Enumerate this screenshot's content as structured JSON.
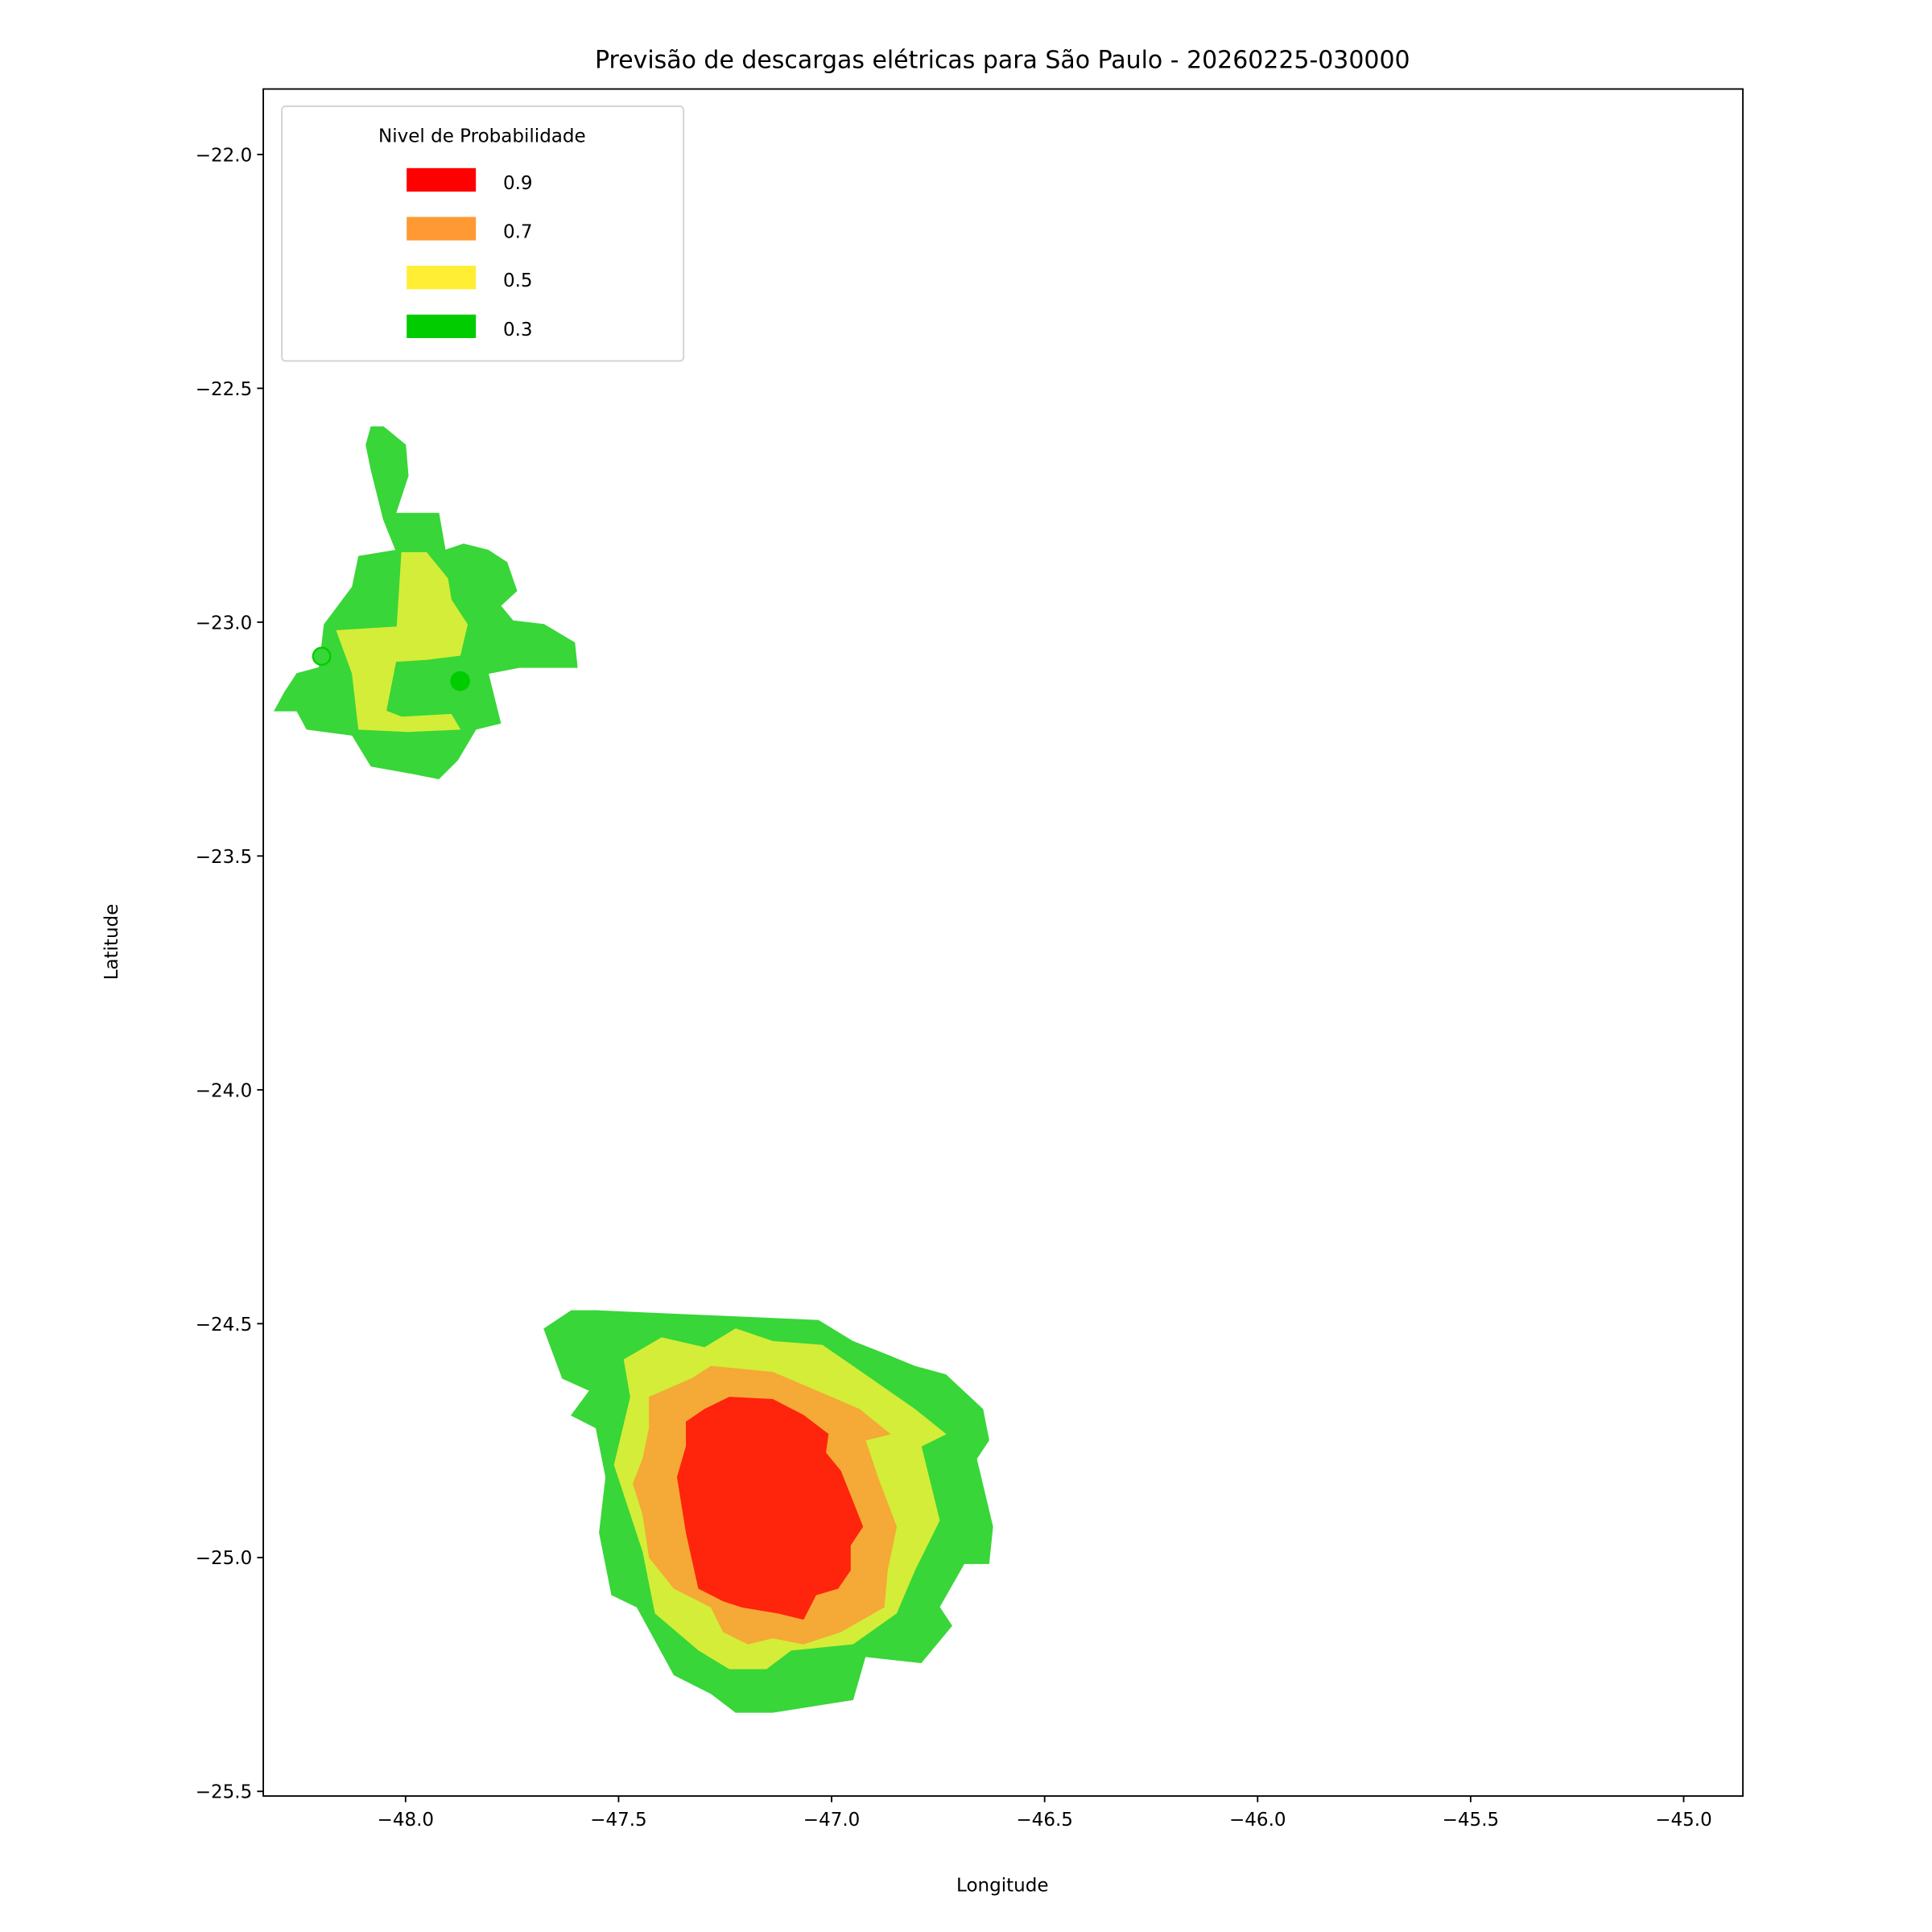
{
  "chart_data": {
    "type": "contourf",
    "title": "Previsão de descargas elétricas para São Paulo - 20260225-030000",
    "xlabel": "Longitude",
    "ylabel": "Latitude",
    "xlim": [
      -48.334,
      -44.861
    ],
    "ylim": [
      -25.51,
      -21.86
    ],
    "x_ticks": [
      -48.0,
      -47.5,
      -47.0,
      -46.5,
      -46.0,
      -45.5,
      -45.0
    ],
    "x_tick_labels": [
      "−48.0",
      "−47.5",
      "−47.0",
      "−46.5",
      "−46.0",
      "−45.5",
      "−45.0"
    ],
    "y_ticks": [
      -22.0,
      -22.5,
      -23.0,
      -23.5,
      -24.0,
      -24.5,
      -25.0,
      -25.5
    ],
    "y_tick_labels": [
      "−22.0",
      "−22.5",
      "−23.0",
      "−23.5",
      "−24.0",
      "−24.5",
      "−25.0",
      "−25.5"
    ],
    "grid": false,
    "legend": {
      "title": "Nivel de Probabilidade",
      "placement": "top-left",
      "entries": [
        {
          "label": "0.9",
          "color": "#ff0000"
        },
        {
          "label": "0.7",
          "color": "#ff9933"
        },
        {
          "label": "0.5",
          "color": "#ffee33"
        },
        {
          "label": "0.3",
          "color": "#00cc00"
        }
      ]
    },
    "levels": [
      {
        "level": 0.3,
        "color": "#38d638",
        "polygons": [
          [
            [
              -48.081,
              -22.582
            ],
            [
              -48.052,
              -22.582
            ],
            [
              -48.0,
              -22.621
            ],
            [
              -47.994,
              -22.687
            ],
            [
              -48.023,
              -22.767
            ],
            [
              -47.922,
              -22.767
            ],
            [
              -47.907,
              -22.846
            ],
            [
              -47.864,
              -22.833
            ],
            [
              -47.806,
              -22.846
            ],
            [
              -47.762,
              -22.872
            ],
            [
              -47.739,
              -22.933
            ],
            [
              -47.777,
              -22.965
            ],
            [
              -47.748,
              -22.997
            ],
            [
              -47.675,
              -23.005
            ],
            [
              -47.603,
              -23.044
            ],
            [
              -47.597,
              -23.097
            ],
            [
              -47.733,
              -23.097
            ],
            [
              -47.806,
              -23.11
            ],
            [
              -47.777,
              -23.216
            ],
            [
              -47.835,
              -23.229
            ],
            [
              -47.878,
              -23.295
            ],
            [
              -47.922,
              -23.335
            ],
            [
              -47.994,
              -23.322
            ],
            [
              -48.081,
              -23.308
            ],
            [
              -48.125,
              -23.242
            ],
            [
              -48.232,
              -23.229
            ],
            [
              -48.255,
              -23.19
            ],
            [
              -48.308,
              -23.19
            ],
            [
              -48.284,
              -23.15
            ],
            [
              -48.255,
              -23.11
            ],
            [
              -48.203,
              -23.097
            ],
            [
              -48.191,
              -23.005
            ],
            [
              -48.125,
              -22.925
            ],
            [
              -48.11,
              -22.859
            ],
            [
              -48.023,
              -22.846
            ],
            [
              -48.052,
              -22.78
            ],
            [
              -48.081,
              -22.674
            ],
            [
              -48.093,
              -22.621
            ]
          ],
          [
            [
              -47.553,
              -24.472
            ],
            [
              -47.031,
              -24.493
            ],
            [
              -46.95,
              -24.538
            ],
            [
              -46.877,
              -24.564
            ],
            [
              -46.805,
              -24.591
            ],
            [
              -46.732,
              -24.609
            ],
            [
              -46.645,
              -24.683
            ],
            [
              -46.631,
              -24.749
            ],
            [
              -46.66,
              -24.789
            ],
            [
              -46.622,
              -24.934
            ],
            [
              -46.631,
              -25.013
            ],
            [
              -46.689,
              -25.013
            ],
            [
              -46.747,
              -25.106
            ],
            [
              -46.718,
              -25.146
            ],
            [
              -46.79,
              -25.225
            ],
            [
              -46.921,
              -25.212
            ],
            [
              -46.95,
              -25.304
            ],
            [
              -47.138,
              -25.331
            ],
            [
              -47.225,
              -25.331
            ],
            [
              -47.283,
              -25.291
            ],
            [
              -47.37,
              -25.251
            ],
            [
              -47.457,
              -25.106
            ],
            [
              -47.516,
              -25.08
            ],
            [
              -47.545,
              -24.947
            ],
            [
              -47.53,
              -24.828
            ],
            [
              -47.553,
              -24.723
            ],
            [
              -47.611,
              -24.696
            ],
            [
              -47.568,
              -24.643
            ],
            [
              -47.632,
              -24.617
            ],
            [
              -47.675,
              -24.511
            ],
            [
              -47.611,
              -24.472
            ]
          ]
        ]
      },
      {
        "level": 0.5,
        "color": "#d4ed38",
        "polygons": [
          [
            [
              -48.009,
              -22.851
            ],
            [
              -47.951,
              -22.851
            ],
            [
              -47.901,
              -22.907
            ],
            [
              -47.893,
              -22.952
            ],
            [
              -47.855,
              -23.005
            ],
            [
              -47.872,
              -23.071
            ],
            [
              -47.951,
              -23.08
            ],
            [
              -48.023,
              -23.084
            ],
            [
              -48.046,
              -23.19
            ],
            [
              -48.009,
              -23.203
            ],
            [
              -47.893,
              -23.197
            ],
            [
              -47.872,
              -23.229
            ],
            [
              -47.994,
              -23.234
            ],
            [
              -48.11,
              -23.229
            ],
            [
              -48.125,
              -23.11
            ],
            [
              -48.162,
              -23.018
            ],
            [
              -48.02,
              -23.01
            ]
          ],
          [
            [
              -47.487,
              -24.577
            ],
            [
              -47.399,
              -24.53
            ],
            [
              -47.298,
              -24.551
            ],
            [
              -47.225,
              -24.511
            ],
            [
              -47.138,
              -24.538
            ],
            [
              -47.022,
              -24.546
            ],
            [
              -46.95,
              -24.591
            ],
            [
              -46.805,
              -24.683
            ],
            [
              -46.732,
              -24.736
            ],
            [
              -46.79,
              -24.762
            ],
            [
              -46.747,
              -24.921
            ],
            [
              -46.805,
              -25.027
            ],
            [
              -46.848,
              -25.119
            ],
            [
              -46.95,
              -25.185
            ],
            [
              -47.095,
              -25.198
            ],
            [
              -47.153,
              -25.238
            ],
            [
              -47.24,
              -25.238
            ],
            [
              -47.312,
              -25.198
            ],
            [
              -47.414,
              -25.119
            ],
            [
              -47.443,
              -24.987
            ],
            [
              -47.51,
              -24.802
            ],
            [
              -47.472,
              -24.657
            ]
          ]
        ]
      },
      {
        "level": 0.7,
        "color": "#f5a936",
        "polygons": [
          [
            [
              -47.428,
              -24.657
            ],
            [
              -47.327,
              -24.617
            ],
            [
              -47.283,
              -24.591
            ],
            [
              -47.138,
              -24.604
            ],
            [
              -47.037,
              -24.643
            ],
            [
              -46.935,
              -24.683
            ],
            [
              -46.863,
              -24.736
            ],
            [
              -46.921,
              -24.749
            ],
            [
              -46.892,
              -24.828
            ],
            [
              -46.848,
              -24.934
            ],
            [
              -46.869,
              -25.027
            ],
            [
              -46.877,
              -25.106
            ],
            [
              -46.979,
              -25.159
            ],
            [
              -47.066,
              -25.185
            ],
            [
              -47.138,
              -25.172
            ],
            [
              -47.196,
              -25.185
            ],
            [
              -47.254,
              -25.159
            ],
            [
              -47.283,
              -25.106
            ],
            [
              -47.37,
              -25.066
            ],
            [
              -47.428,
              -25.0
            ],
            [
              -47.443,
              -24.908
            ],
            [
              -47.466,
              -24.842
            ],
            [
              -47.443,
              -24.789
            ],
            [
              -47.428,
              -24.723
            ]
          ]
        ]
      },
      {
        "level": 0.9,
        "color": "#ff240c",
        "polygons": [
          [
            [
              -47.341,
              -24.71
            ],
            [
              -47.298,
              -24.683
            ],
            [
              -47.24,
              -24.657
            ],
            [
              -47.138,
              -24.662
            ],
            [
              -47.066,
              -24.696
            ],
            [
              -47.008,
              -24.736
            ],
            [
              -47.014,
              -24.776
            ],
            [
              -46.979,
              -24.815
            ],
            [
              -46.95,
              -24.881
            ],
            [
              -46.927,
              -24.934
            ],
            [
              -46.956,
              -24.974
            ],
            [
              -46.956,
              -25.027
            ],
            [
              -46.985,
              -25.066
            ],
            [
              -47.037,
              -25.08
            ],
            [
              -47.066,
              -25.132
            ],
            [
              -47.124,
              -25.119
            ],
            [
              -47.211,
              -25.106
            ],
            [
              -47.254,
              -25.093
            ],
            [
              -47.312,
              -25.066
            ],
            [
              -47.341,
              -24.947
            ],
            [
              -47.362,
              -24.828
            ],
            [
              -47.341,
              -24.762
            ]
          ]
        ]
      }
    ],
    "markers": [
      {
        "lon": -48.197,
        "lat": -23.073,
        "color": "#00cc00",
        "style": "ring"
      },
      {
        "lon": -47.872,
        "lat": -23.126,
        "color": "#00cc00",
        "style": "filled"
      }
    ]
  }
}
